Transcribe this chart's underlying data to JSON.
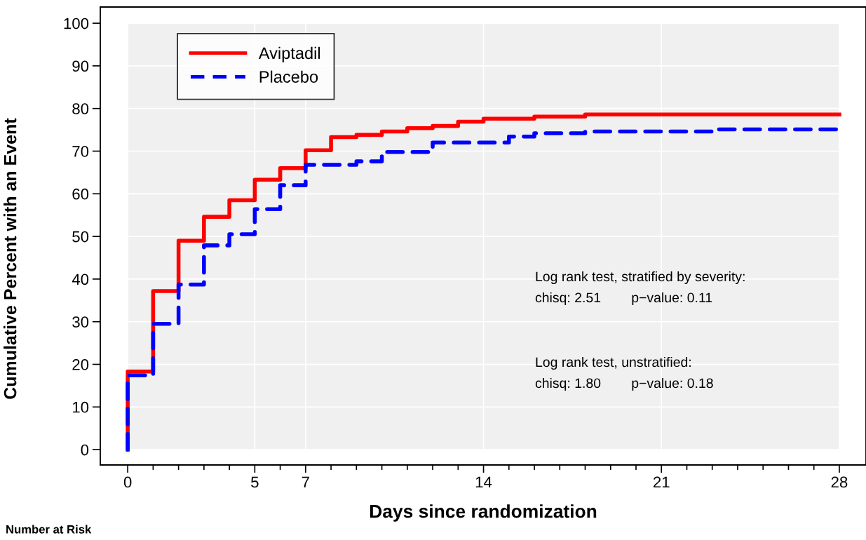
{
  "chart_data": {
    "type": "step",
    "xlabel": "Days since randomization",
    "ylabel": "Cumulative Percent with an Event",
    "series": [
      {
        "name": "Aviptadil",
        "color": "#ff0000",
        "line_style": "solid",
        "x": [
          0,
          0,
          1,
          2,
          3,
          4,
          5,
          6,
          7,
          8,
          9,
          10,
          11,
          12,
          13,
          14,
          16,
          18,
          28
        ],
        "values": [
          0,
          18.3,
          37.2,
          49.0,
          54.6,
          58.5,
          63.3,
          66.0,
          70.2,
          73.3,
          73.8,
          74.6,
          75.4,
          75.9,
          76.9,
          77.6,
          78.1,
          78.6,
          78.6
        ]
      },
      {
        "name": "Placebo",
        "color": "#0000ff",
        "line_style": "dashed",
        "x": [
          0,
          0,
          1,
          2,
          3,
          4,
          5,
          6,
          7,
          9,
          10,
          12,
          15,
          16,
          18,
          23,
          28
        ],
        "values": [
          0,
          17.4,
          29.5,
          38.7,
          47.9,
          50.5,
          56.4,
          62.0,
          66.8,
          67.6,
          69.8,
          72.0,
          73.4,
          74.2,
          74.6,
          75.1,
          75.1
        ]
      }
    ],
    "xlim": [
      -1.08,
      29.05
    ],
    "ylim": [
      -3.6,
      103.8
    ],
    "xticks": [
      0,
      {
        "value": 1,
        "label": null
      },
      {
        "value": 2,
        "label": null
      },
      {
        "value": 3,
        "label": null
      },
      {
        "value": 4,
        "label": null
      },
      5,
      {
        "value": 6,
        "label": null
      },
      7,
      {
        "value": 8,
        "label": null
      },
      {
        "value": 9,
        "label": null
      },
      {
        "value": 10,
        "label": null
      },
      {
        "value": 11,
        "label": null
      },
      {
        "value": 12,
        "label": null
      },
      {
        "value": 13,
        "label": null
      },
      14,
      {
        "value": 15,
        "label": null
      },
      {
        "value": 16,
        "label": null
      },
      {
        "value": 17,
        "label": null
      },
      {
        "value": 18,
        "label": null
      },
      {
        "value": 19,
        "label": null
      },
      {
        "value": 20,
        "label": null
      },
      21,
      {
        "value": 22,
        "label": null
      },
      {
        "value": 23,
        "label": null
      },
      {
        "value": 24,
        "label": null
      },
      {
        "value": 25,
        "label": null
      },
      {
        "value": 26,
        "label": null
      },
      {
        "value": 27,
        "label": null
      },
      28
    ],
    "yticks": [
      0,
      10,
      20,
      30,
      40,
      50,
      60,
      70,
      80,
      90,
      100
    ],
    "grid": true,
    "legend": "top left",
    "marker": "none",
    "annotations": [
      "Log rank test, stratified by severity:",
      "chisq: 2.51        p−value: 0.11",
      "Log rank test, unstratified:",
      "chisq: 1.80        p−value: 0.18",
      "Number at Risk"
    ]
  }
}
